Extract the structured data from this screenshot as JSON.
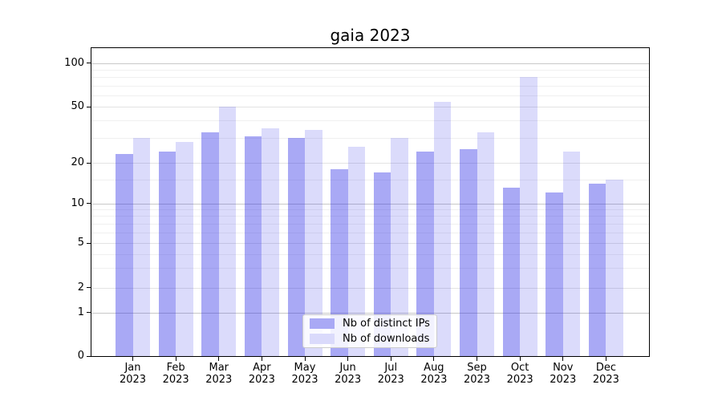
{
  "chart_data": {
    "type": "bar",
    "title": "gaia 2023",
    "categories": [
      "Jan 2023",
      "Feb 2023",
      "Mar 2023",
      "Apr 2023",
      "May 2023",
      "Jun 2023",
      "Jul 2023",
      "Aug 2023",
      "Sep 2023",
      "Oct 2023",
      "Nov 2023",
      "Dec 2023"
    ],
    "x_tick_line1": [
      "Jan",
      "Feb",
      "Mar",
      "Apr",
      "May",
      "Jun",
      "Jul",
      "Aug",
      "Sep",
      "Oct",
      "Nov",
      "Dec"
    ],
    "x_tick_line2": "2023",
    "series": [
      {
        "name": "Nb of distinct IPs",
        "color": "rgba(40,40,230,0.40)",
        "legend_color": "#a9a9f5",
        "values": [
          23,
          24,
          33,
          31,
          30,
          18,
          17,
          24,
          25,
          13,
          12,
          14
        ]
      },
      {
        "name": "Nb of downloads",
        "color": "rgba(40,40,230,0.17)",
        "legend_color": "#dadafb",
        "values": [
          30,
          28,
          50,
          35,
          34,
          26,
          30,
          54,
          33,
          80,
          24,
          15
        ]
      }
    ],
    "y_axis": {
      "scale": "symlog",
      "major_ticks": [
        0,
        1,
        2,
        5,
        10,
        20,
        50,
        100
      ],
      "emphasized_ticks": [
        1,
        10,
        100
      ],
      "minor_ticks": [
        3,
        4,
        6,
        7,
        8,
        9,
        15,
        30,
        40,
        60,
        70,
        80,
        90
      ],
      "ylim": [
        0,
        115
      ]
    },
    "legend_position": "lower center",
    "grid": true
  },
  "colors": {
    "grid_major": "#c8c8c8",
    "grid_mid": "#e3e3e3",
    "grid_minor": "#f0f0f0",
    "spine": "#000000",
    "text": "#000000",
    "background": "#ffffff"
  }
}
